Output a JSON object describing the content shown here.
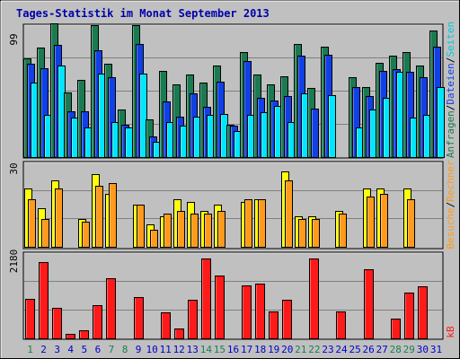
{
  "chart_data": {
    "type": "bar",
    "title": "Tages-Statistik im Monat September 2013",
    "categories": [
      "1",
      "2",
      "3",
      "4",
      "5",
      "6",
      "7",
      "8",
      "9",
      "10",
      "11",
      "12",
      "13",
      "14",
      "15",
      "16",
      "17",
      "18",
      "19",
      "20",
      "21",
      "22",
      "23",
      "24",
      "25",
      "26",
      "27",
      "28",
      "29",
      "30",
      "31"
    ],
    "weekend_days": [
      "1",
      "7",
      "8",
      "14",
      "15",
      "21",
      "22",
      "28",
      "29"
    ],
    "panels": [
      {
        "id": "top",
        "scale_label": "99",
        "ylim": [
          0,
          99
        ],
        "series": [
          {
            "name": "Anfragen",
            "color": "#1a7a50",
            "values": [
              73,
              81,
              99,
              48,
              57,
              98,
              69,
              35,
              98,
              28,
              64,
              54,
              61,
              55,
              68,
              24,
              78,
              61,
              54,
              60,
              84,
              51,
              82,
              0,
              59,
              52,
              70,
              75,
              78,
              68,
              94
            ]
          },
          {
            "name": "Dateien",
            "color": "#1040e6",
            "values": [
              69,
              66,
              83,
              34,
              34,
              79,
              59,
              24,
              84,
              15,
              41,
              30,
              47,
              37,
              56,
              23,
              71,
              44,
              42,
              45,
              75,
              36,
              76,
              0,
              52,
              45,
              64,
              65,
              63,
              59,
              82
            ]
          },
          {
            "name": "Seiten",
            "color": "#00e6ff",
            "values": [
              55,
              31,
              68,
              29,
              22,
              62,
              26,
              22,
              62,
              11,
              26,
              23,
              30,
              31,
              32,
              19,
              31,
              33,
              38,
              26,
              47,
              0,
              46,
              0,
              22,
              35,
              44,
              63,
              29,
              31,
              52
            ]
          }
        ]
      },
      {
        "id": "middle",
        "scale_label": "30",
        "ylim": [
          0,
          30
        ],
        "series": [
          {
            "name": "Besuche",
            "color": "#ffff00",
            "values": [
              21,
              14,
              24,
              0,
              10,
              26,
              19,
              0,
              15,
              8,
              11,
              17,
              16,
              13,
              15,
              0,
              16,
              17,
              0,
              27,
              11,
              11,
              0,
              13,
              0,
              21,
              21,
              0,
              21,
              0,
              0
            ]
          },
          {
            "name": "Rechner",
            "color": "#ff9a1a",
            "values": [
              17,
              10,
              21,
              0,
              9,
              22,
              23,
              0,
              15,
              6,
              12,
              13,
              12,
              12,
              13,
              0,
              17,
              17,
              0,
              24,
              10,
              10,
              0,
              12,
              0,
              18,
              19,
              0,
              17,
              0,
              0
            ]
          }
        ]
      },
      {
        "id": "bottom",
        "scale_label": "2180",
        "ylim": [
          0,
          2180
        ],
        "series": [
          {
            "name": "kB",
            "color": "#ff1a1a",
            "values": [
              1040,
              1990,
              790,
              120,
              220,
              870,
              1570,
              0,
              1070,
              0,
              670,
              250,
              1010,
              2080,
              1650,
              0,
              1380,
              1430,
              700,
              1010,
              0,
              2080,
              0,
              700,
              0,
              1800,
              0,
              520,
              1200,
              1350,
              0
            ]
          }
        ]
      }
    ],
    "right_legend": {
      "top": [
        "Anfragen",
        "/",
        "Dateien",
        "/",
        "Seiten"
      ],
      "middle": [
        "Besuche",
        "/",
        "Rechner"
      ],
      "bottom": [
        "kB"
      ]
    }
  },
  "colors": {
    "background": "#c0c0c0",
    "title": "#0000aa",
    "weekday": "#0000cc",
    "weekend": "#1a8050",
    "scale": "#000000",
    "gridline": "#808080"
  }
}
